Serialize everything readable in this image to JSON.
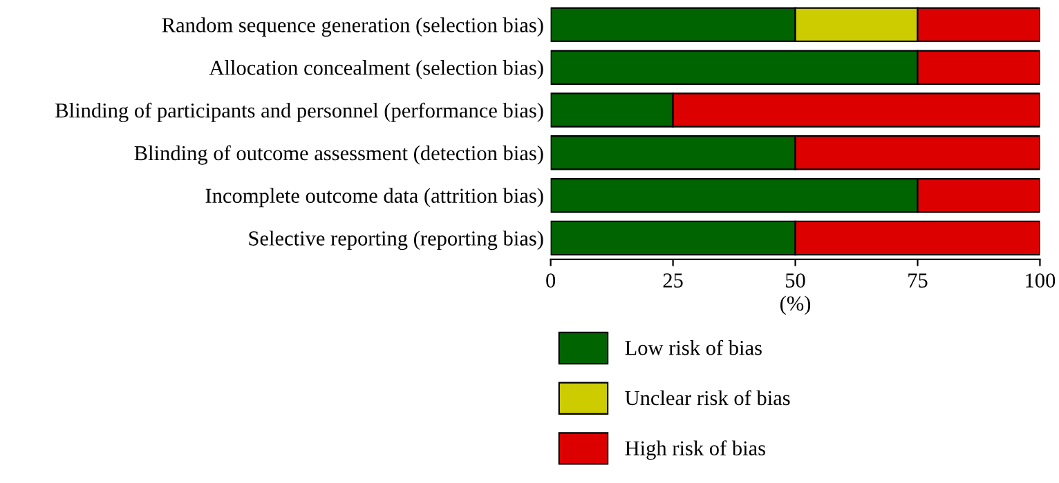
{
  "chart_data": {
    "type": "bar",
    "orientation": "horizontal",
    "stacked": true,
    "categories": [
      "Random sequence generation (selection bias)",
      "Allocation concealment (selection bias)",
      "Blinding of participants and personnel (performance bias)",
      "Blinding of outcome assessment (detection bias)",
      "Incomplete outcome data (attrition bias)",
      "Selective reporting (reporting bias)"
    ],
    "series": [
      {
        "name": "Low risk of bias",
        "color": "#006400",
        "values": [
          50,
          75,
          25,
          50,
          75,
          50
        ]
      },
      {
        "name": "Unclear risk of bias",
        "color": "#cccc00",
        "values": [
          25,
          0,
          0,
          0,
          0,
          0
        ]
      },
      {
        "name": "High risk of bias",
        "color": "#dd0000",
        "values": [
          25,
          25,
          75,
          50,
          25,
          50
        ]
      }
    ],
    "xlim": [
      0,
      100
    ],
    "xticks": [
      0,
      25,
      50,
      75,
      100
    ],
    "xlabel": "(%)",
    "grid": false,
    "legend": "bottom left"
  }
}
